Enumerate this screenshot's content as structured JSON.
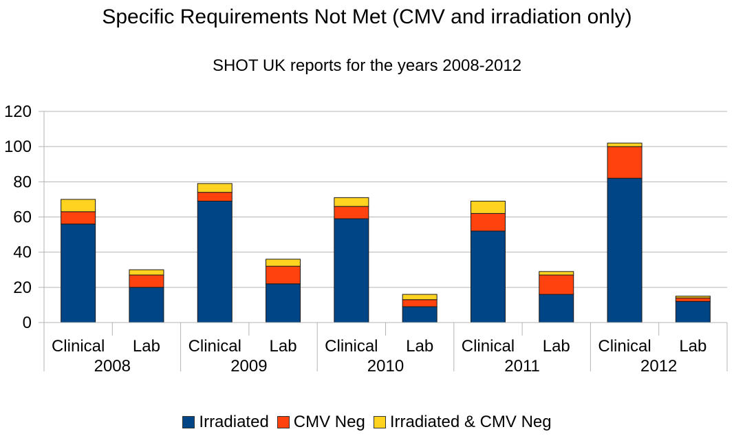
{
  "chart_data": {
    "type": "bar",
    "stacked": true,
    "title": "Specific Requirements Not Met (CMV and irradiation only)",
    "subtitle": "SHOT UK reports for the years 2008-2012",
    "categories": [
      "Clinical",
      "Lab",
      "Clinical",
      "Lab",
      "Clinical",
      "Lab",
      "Clinical",
      "Lab",
      "Clinical",
      "Lab"
    ],
    "groups": [
      {
        "label": "2008",
        "span": 2
      },
      {
        "label": "2009",
        "span": 2
      },
      {
        "label": "2010",
        "span": 2
      },
      {
        "label": "2011",
        "span": 2
      },
      {
        "label": "2012",
        "span": 2
      }
    ],
    "series": [
      {
        "name": "Irradiated",
        "color": "#004586",
        "values": [
          56,
          20,
          69,
          22,
          59,
          9,
          52,
          16,
          82,
          12
        ]
      },
      {
        "name": "CMV Neg",
        "color": "#ff420e",
        "values": [
          7,
          7,
          5,
          10,
          7,
          4,
          10,
          11,
          18,
          2
        ]
      },
      {
        "name": "Irradiated & CMV Neg",
        "color": "#ffd320",
        "values": [
          7,
          3,
          5,
          4,
          5,
          3,
          7,
          2,
          2,
          1
        ]
      }
    ],
    "ylim": [
      0,
      120
    ],
    "yticks": [
      0,
      20,
      40,
      60,
      80,
      100,
      120
    ],
    "grid": true,
    "legend": "bottom",
    "xlabel": "",
    "ylabel": ""
  }
}
